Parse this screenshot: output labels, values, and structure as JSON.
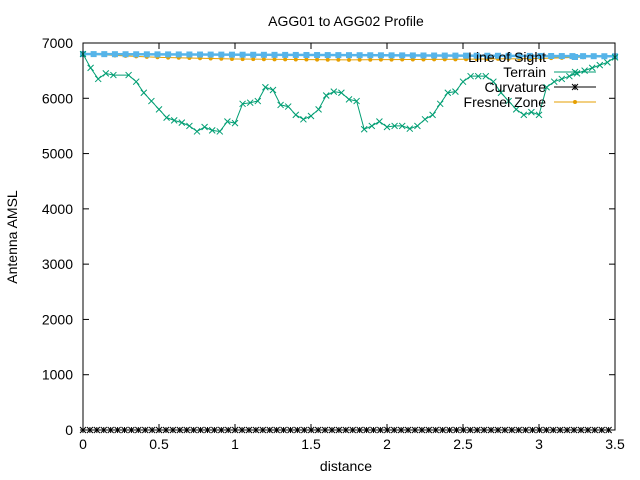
{
  "chart_data": {
    "type": "line",
    "title": "AGG01 to AGG02 Profile",
    "xlabel": "distance",
    "ylabel": "Antenna AMSL",
    "xlim": [
      0,
      3.5
    ],
    "ylim": [
      0,
      7000
    ],
    "x_ticks": [
      "0",
      "0.5",
      "1",
      "1.5",
      "2",
      "2.5",
      "3",
      "3.5"
    ],
    "y_ticks": [
      "0",
      "1000",
      "2000",
      "3000",
      "4000",
      "5000",
      "6000",
      "7000"
    ],
    "grid": false,
    "legend_position": "top-right",
    "series": [
      {
        "name": "Line of Sight",
        "color": "#56b4e9",
        "marker": "square",
        "x": [
          0,
          3.5
        ],
        "y": [
          6800,
          6760
        ]
      },
      {
        "name": "Terrain",
        "color": "#009e73",
        "marker": "x",
        "x": [
          0,
          0.05,
          0.1,
          0.15,
          0.2,
          0.3,
          0.35,
          0.4,
          0.45,
          0.5,
          0.55,
          0.6,
          0.65,
          0.7,
          0.75,
          0.8,
          0.85,
          0.9,
          0.95,
          1.0,
          1.05,
          1.1,
          1.15,
          1.2,
          1.25,
          1.3,
          1.35,
          1.4,
          1.45,
          1.5,
          1.55,
          1.6,
          1.65,
          1.7,
          1.75,
          1.8,
          1.85,
          1.9,
          1.95,
          2.0,
          2.05,
          2.1,
          2.15,
          2.2,
          2.25,
          2.3,
          2.35,
          2.4,
          2.45,
          2.5,
          2.55,
          2.6,
          2.65,
          2.7,
          2.75,
          2.8,
          2.85,
          2.9,
          2.95,
          3.0,
          3.05,
          3.1,
          3.15,
          3.2,
          3.25,
          3.3,
          3.35,
          3.4,
          3.45,
          3.5
        ],
        "y": [
          6800,
          6550,
          6350,
          6450,
          6420,
          6420,
          6300,
          6100,
          5950,
          5800,
          5650,
          5600,
          5560,
          5500,
          5400,
          5480,
          5420,
          5400,
          5580,
          5550,
          5900,
          5920,
          5950,
          6200,
          6150,
          5880,
          5850,
          5700,
          5620,
          5680,
          5800,
          6050,
          6120,
          6100,
          5980,
          5950,
          5440,
          5500,
          5580,
          5480,
          5500,
          5500,
          5450,
          5500,
          5620,
          5700,
          5900,
          6100,
          6120,
          6300,
          6400,
          6400,
          6400,
          6300,
          6100,
          5950,
          5800,
          5700,
          5750,
          5700,
          6200,
          6300,
          6350,
          6400,
          6450,
          6500,
          6550,
          6600,
          6650,
          6740
        ]
      },
      {
        "name": "Curvature",
        "color": "#000000",
        "marker": "asterisk",
        "x": [
          0,
          3.5
        ],
        "y": [
          0,
          0
        ]
      },
      {
        "name": "Fresnel Zone",
        "color": "#e69f00",
        "marker": "dot",
        "x": [
          0,
          0.5,
          1.0,
          1.5,
          1.75,
          2.0,
          2.5,
          3.0,
          3.5
        ],
        "y": [
          6800,
          6740,
          6710,
          6700,
          6695,
          6700,
          6705,
          6720,
          6760
        ]
      }
    ]
  }
}
